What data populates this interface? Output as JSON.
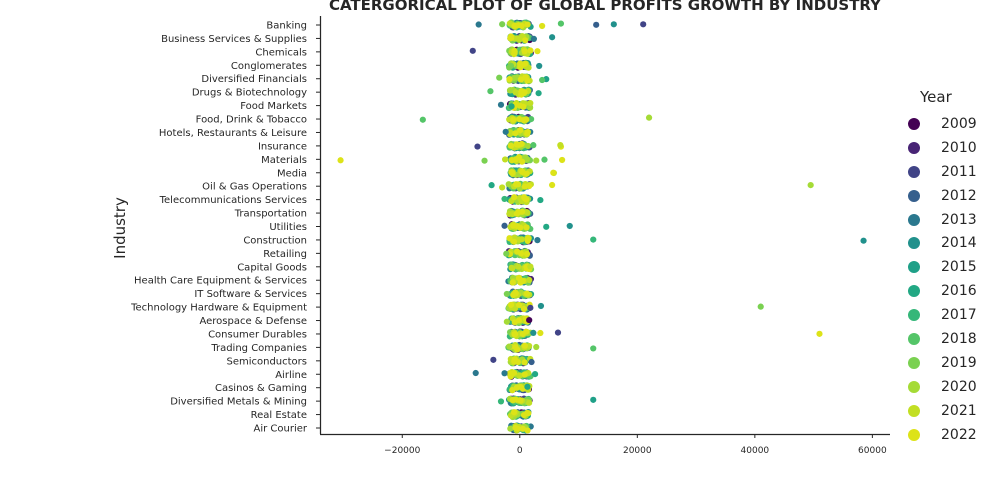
{
  "chart_data": {
    "type": "scatter",
    "subtype": "categorical strip plot",
    "title": "CATERGORICAL PLOT OF GLOBAL PROFITS GROWTH BY INDUSTRY",
    "xlabel": "",
    "ylabel": "Industry",
    "xlim": [
      -34000,
      63000
    ],
    "xticks": [
      -20000,
      0,
      20000,
      40000,
      60000
    ],
    "xtick_labels": [
      "−20000",
      "0",
      "20000",
      "40000",
      "60000"
    ],
    "grid": false,
    "legend": {
      "title": "Year",
      "placement": "right",
      "entries": [
        {
          "label": "2009",
          "color": "#440154"
        },
        {
          "label": "2010",
          "color": "#482475"
        },
        {
          "label": "2011",
          "color": "#414487"
        },
        {
          "label": "2012",
          "color": "#355f8d"
        },
        {
          "label": "2013",
          "color": "#2a788e"
        },
        {
          "label": "2014",
          "color": "#21918c"
        },
        {
          "label": "2015",
          "color": "#1fa088"
        },
        {
          "label": "2016",
          "color": "#22a884"
        },
        {
          "label": "2017",
          "color": "#35b779"
        },
        {
          "label": "2018",
          "color": "#54c568"
        },
        {
          "label": "2019",
          "color": "#7ad151"
        },
        {
          "label": "2020",
          "color": "#a5db36"
        },
        {
          "label": "2021",
          "color": "#c2df23"
        },
        {
          "label": "2022",
          "color": "#dde318"
        }
      ]
    },
    "categories": [
      "Banking",
      "Business Services & Supplies",
      "Chemicals",
      "Conglomerates",
      "Diversified Financials",
      "Drugs & Biotechnology",
      "Food Markets",
      "Food, Drink & Tobacco",
      "Hotels, Restaurants & Leisure",
      "Insurance",
      "Materials",
      "Media",
      "Oil & Gas Operations",
      "Telecommunications Services",
      "Transportation",
      "Utilities",
      "Construction",
      "Retailing",
      "Capital Goods",
      "Health Care Equipment & Services",
      "IT Software & Services",
      "Technology Hardware & Equipment",
      "Aerospace & Defense",
      "Consumer Durables",
      "Trading Companies",
      "Semiconductors",
      "Airline",
      "Casinos & Gaming",
      "Diversified Metals & Mining",
      "Real Estate",
      "Air Courier"
    ],
    "points": [
      {
        "category": "Banking",
        "year": "2011",
        "x": 21000
      },
      {
        "category": "Banking",
        "year": "2014",
        "x": 16000
      },
      {
        "category": "Banking",
        "year": "2012",
        "x": 13000
      },
      {
        "category": "Banking",
        "year": "2013",
        "x": -7000
      },
      {
        "category": "Banking",
        "year": "2019",
        "x": -3000
      },
      {
        "category": "Banking",
        "year": "2018",
        "x": 7000
      },
      {
        "category": "Banking",
        "year": "2022",
        "x": 3800
      },
      {
        "category": "Business Services & Supplies",
        "year": "2014",
        "x": 5500
      },
      {
        "category": "Business Services & Supplies",
        "year": "2013",
        "x": 2400
      },
      {
        "category": "Chemicals",
        "year": "2011",
        "x": -8000
      },
      {
        "category": "Chemicals",
        "year": "2022",
        "x": 3000
      },
      {
        "category": "Conglomerates",
        "year": "2014",
        "x": 3300
      },
      {
        "category": "Conglomerates",
        "year": "2019",
        "x": -1500
      },
      {
        "category": "Diversified Financials",
        "year": "2019",
        "x": -3500
      },
      {
        "category": "Diversified Financials",
        "year": "2015",
        "x": 4500
      },
      {
        "category": "Diversified Financials",
        "year": "2018",
        "x": 3800
      },
      {
        "category": "Drugs & Biotechnology",
        "year": "2018",
        "x": -5000
      },
      {
        "category": "Drugs & Biotechnology",
        "year": "2016",
        "x": 3200
      },
      {
        "category": "Food Markets",
        "year": "2013",
        "x": -3200
      },
      {
        "category": "Food Markets",
        "year": "2016",
        "x": -1400
      },
      {
        "category": "Food, Drink & Tobacco",
        "year": "2018",
        "x": -16500
      },
      {
        "category": "Food, Drink & Tobacco",
        "year": "2020",
        "x": 22000
      },
      {
        "category": "Hotels, Restaurants & Leisure",
        "year": "2013",
        "x": -2400
      },
      {
        "category": "Insurance",
        "year": "2011",
        "x": -7200
      },
      {
        "category": "Insurance",
        "year": "2022",
        "x": 7000
      },
      {
        "category": "Insurance",
        "year": "2021",
        "x": 6900
      },
      {
        "category": "Insurance",
        "year": "2018",
        "x": 2300
      },
      {
        "category": "Materials",
        "year": "2022",
        "x": -30500
      },
      {
        "category": "Materials",
        "year": "2019",
        "x": -6000
      },
      {
        "category": "Materials",
        "year": "2022",
        "x": 7200
      },
      {
        "category": "Materials",
        "year": "2018",
        "x": 4200
      },
      {
        "category": "Materials",
        "year": "2020",
        "x": 2800
      },
      {
        "category": "Materials",
        "year": "2021",
        "x": -2500
      },
      {
        "category": "Media",
        "year": "2021",
        "x": 5800
      },
      {
        "category": "Media",
        "year": "2022",
        "x": 5700
      },
      {
        "category": "Oil & Gas Operations",
        "year": "2020",
        "x": 49500
      },
      {
        "category": "Oil & Gas Operations",
        "year": "2022",
        "x": 5500
      },
      {
        "category": "Oil & Gas Operations",
        "year": "2016",
        "x": -4800
      },
      {
        "category": "Oil & Gas Operations",
        "year": "2021",
        "x": -3000
      },
      {
        "category": "Telecommunications Services",
        "year": "2016",
        "x": 3500
      },
      {
        "category": "Telecommunications Services",
        "year": "2017",
        "x": -2600
      },
      {
        "category": "Utilities",
        "year": "2014",
        "x": 8500
      },
      {
        "category": "Utilities",
        "year": "2016",
        "x": 4500
      },
      {
        "category": "Utilities",
        "year": "2012",
        "x": -2600
      },
      {
        "category": "Construction",
        "year": "2014",
        "x": 58500
      },
      {
        "category": "Construction",
        "year": "2017",
        "x": 12500
      },
      {
        "category": "Construction",
        "year": "2013",
        "x": 3000
      },
      {
        "category": "Retailing",
        "year": "2019",
        "x": -2300
      },
      {
        "category": "Capital Goods",
        "year": "2021",
        "x": 1800
      },
      {
        "category": "IT Software & Services",
        "year": "2019",
        "x": -2200
      },
      {
        "category": "Technology Hardware & Equipment",
        "year": "2019",
        "x": 41000
      },
      {
        "category": "Technology Hardware & Equipment",
        "year": "2014",
        "x": 3600
      },
      {
        "category": "Technology Hardware & Equipment",
        "year": "2011",
        "x": 1800
      },
      {
        "category": "Aerospace & Defense",
        "year": "2009",
        "x": 1600
      },
      {
        "category": "Aerospace & Defense",
        "year": "2020",
        "x": -2200
      },
      {
        "category": "Consumer Durables",
        "year": "2022",
        "x": 51000
      },
      {
        "category": "Consumer Durables",
        "year": "2011",
        "x": 6500
      },
      {
        "category": "Consumer Durables",
        "year": "2022",
        "x": 3500
      },
      {
        "category": "Consumer Durables",
        "year": "2014",
        "x": 2300
      },
      {
        "category": "Trading Companies",
        "year": "2018",
        "x": 12500
      },
      {
        "category": "Trading Companies",
        "year": "2020",
        "x": 2800
      },
      {
        "category": "Trading Companies",
        "year": "2020",
        "x": -1800
      },
      {
        "category": "Semiconductors",
        "year": "2011",
        "x": -4500
      },
      {
        "category": "Semiconductors",
        "year": "2012",
        "x": 2000
      },
      {
        "category": "Airline",
        "year": "2013",
        "x": -7500
      },
      {
        "category": "Airline",
        "year": "2016",
        "x": 2600
      },
      {
        "category": "Airline",
        "year": "2013",
        "x": -2600
      },
      {
        "category": "Casinos & Gaming",
        "year": "2016",
        "x": 1300
      },
      {
        "category": "Diversified Metals & Mining",
        "year": "2015",
        "x": 12500
      },
      {
        "category": "Diversified Metals & Mining",
        "year": "2017",
        "x": -3200
      }
    ]
  }
}
